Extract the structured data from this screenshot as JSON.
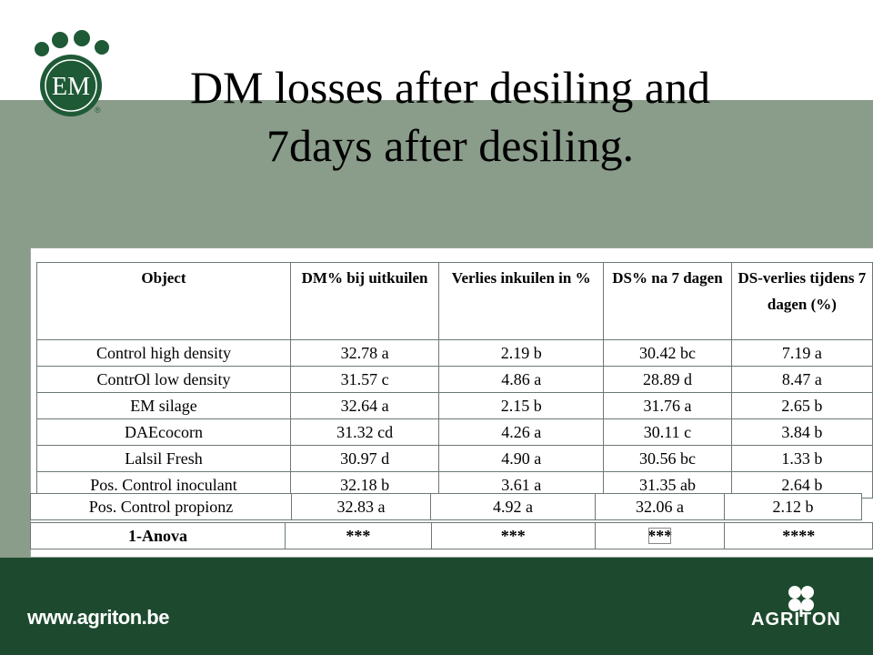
{
  "title": {
    "line1": "DM losses after desiling and",
    "line2": "7days after desiling."
  },
  "logo": {
    "text": "EM",
    "icon": "paw-logo-icon"
  },
  "table": {
    "headers": {
      "c1": "Object",
      "c2": "DM% bij uitkuilen",
      "c3": "Verlies inkuilen in %",
      "c4": "DS% na 7 dagen",
      "c5": "DS-verlies tijdens 7 dagen (%)"
    },
    "rows": [
      {
        "object": "Control high density",
        "dm": "32.78 a",
        "loss": "2.19 b",
        "ds7": "30.42 bc",
        "dsloss": "7.19 a"
      },
      {
        "object": "ContrOl low density",
        "dm": "31.57 c",
        "loss": "4.86 a",
        "ds7": "28.89 d",
        "dsloss": "8.47 a"
      },
      {
        "object": "EM silage",
        "dm": "32.64 a",
        "loss": "2.15 b",
        "ds7": "31.76 a",
        "dsloss": "2.65 b"
      },
      {
        "object": "DAEcocorn",
        "dm": "31.32 cd",
        "loss": "4.26 a",
        "ds7": "30.11 c",
        "dsloss": "3.84 b"
      },
      {
        "object": "Lalsil Fresh",
        "dm": "30.97 d",
        "loss": "4.90 a",
        "ds7": "30.56 bc",
        "dsloss": "1.33 b"
      },
      {
        "object": "Pos. Control inoculant",
        "dm": "32.18 b",
        "loss": "3.61 a",
        "ds7": "31.35 ab",
        "dsloss": "2.64 b"
      }
    ],
    "propionz": {
      "object": "Pos. Control propionz",
      "dm": "32.83 a",
      "loss": "4.92 a",
      "ds7": "32.06 a",
      "dsloss": "2.12 b"
    },
    "anova": {
      "object": "1-Anova",
      "dm": "***",
      "loss": "***",
      "ds7": "***",
      "dsloss": "****"
    }
  },
  "footer": {
    "url": "www.agriton.be",
    "brand": "AGRITON",
    "brand_icon": "clover-icon"
  },
  "colors": {
    "band_gray_green": "#8a9c8a",
    "band_dark_green": "#1d4a2e",
    "logo_green": "#1f5a36"
  }
}
